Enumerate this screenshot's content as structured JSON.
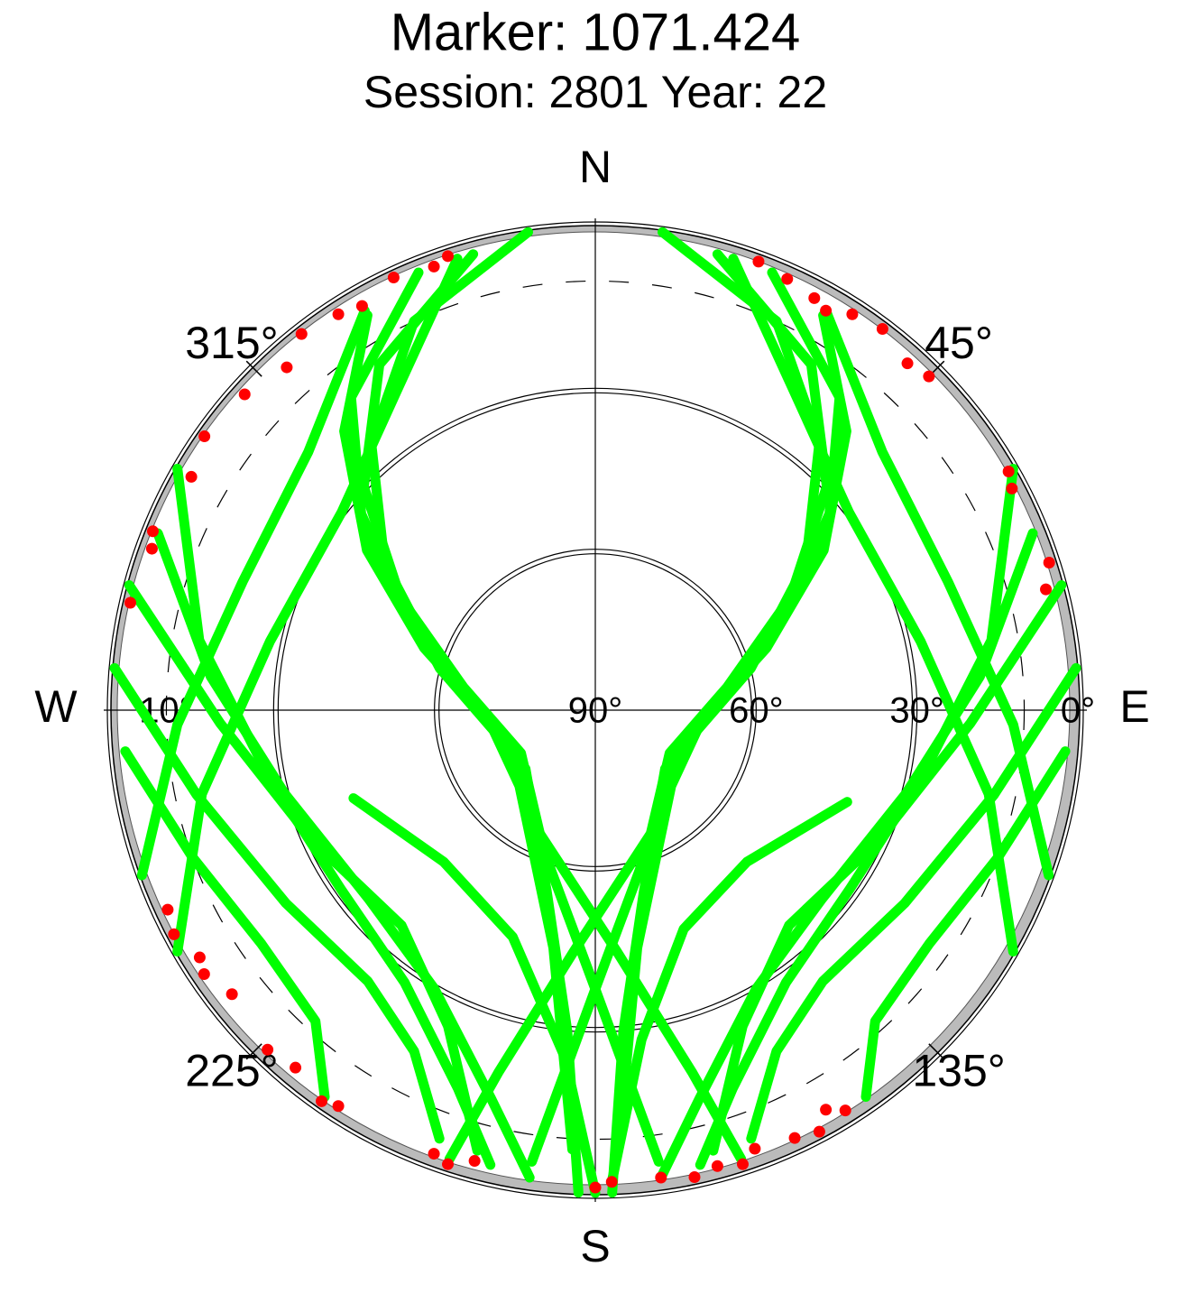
{
  "chart_data": {
    "type": "polar",
    "title": "Marker: 1071.424",
    "subtitle": "Session: 2801 Year: 22",
    "ylim": [
      90,
      0
    ],
    "yticks": [
      {
        "value": 0,
        "label": "0°"
      },
      {
        "value": 10,
        "label": "10°"
      },
      {
        "value": 30,
        "label": "30°"
      },
      {
        "value": 60,
        "label": "60°"
      },
      {
        "value": 90,
        "label": "90°"
      }
    ],
    "xticks": [
      {
        "value": 45,
        "label": "45°"
      },
      {
        "value": 135,
        "label": "135°"
      },
      {
        "value": 225,
        "label": "225°"
      },
      {
        "value": 315,
        "label": "315°"
      }
    ],
    "directions": [
      {
        "value": 0,
        "label": "N"
      },
      {
        "value": 90,
        "label": "E"
      },
      {
        "value": 180,
        "label": "S"
      },
      {
        "value": 270,
        "label": "W"
      }
    ],
    "grid": true,
    "series": [
      {
        "color": "#00ff00",
        "x": [
          352,
          335,
          320,
          305,
          285,
          250,
          205,
          175,
          165,
          162
        ],
        "values": [
          0,
          10,
          25,
          42,
          60,
          72,
          65,
          45,
          20,
          2
        ]
      },
      {
        "color": "#00ff00",
        "x": [
          345,
          328,
          314,
          300,
          280,
          240,
          200,
          180,
          172
        ],
        "values": [
          2,
          14,
          30,
          48,
          65,
          74,
          62,
          38,
          5
        ]
      },
      {
        "color": "#00ff00",
        "x": [
          338,
          322,
          310,
          295,
          272,
          230,
          195,
          185,
          182
        ],
        "values": [
          2,
          16,
          33,
          52,
          68,
          73,
          55,
          30,
          0
        ]
      },
      {
        "color": "#00ff00",
        "x": [
          330,
          318,
          305,
          290,
          265,
          225,
          190,
          183
        ],
        "values": [
          5,
          20,
          38,
          56,
          70,
          70,
          45,
          8
        ]
      },
      {
        "color": "#00ff00",
        "x": [
          8,
          25,
          40,
          55,
          75,
          110,
          155,
          185,
          195,
          198
        ],
        "values": [
          0,
          10,
          25,
          42,
          60,
          72,
          65,
          45,
          20,
          2
        ]
      },
      {
        "color": "#00ff00",
        "x": [
          15,
          32,
          46,
          60,
          80,
          120,
          160,
          180,
          188
        ],
        "values": [
          2,
          14,
          30,
          48,
          65,
          74,
          62,
          38,
          5
        ]
      },
      {
        "color": "#00ff00",
        "x": [
          22,
          38,
          50,
          65,
          88,
          130,
          165,
          175,
          178
        ],
        "values": [
          2,
          16,
          33,
          52,
          68,
          73,
          55,
          30,
          0
        ]
      },
      {
        "color": "#00ff00",
        "x": [
          30,
          42,
          55,
          70,
          95,
          135,
          170,
          177
        ],
        "values": [
          5,
          20,
          38,
          56,
          70,
          70,
          45,
          8
        ]
      },
      {
        "color": "#00ff00",
        "x": [
          292,
          275,
          255,
          230,
          210,
          195,
          188
        ],
        "values": [
          2,
          18,
          30,
          35,
          30,
          15,
          2
        ]
      },
      {
        "color": "#00ff00",
        "x": [
          285,
          268,
          245,
          222,
          205,
          195
        ],
        "values": [
          0,
          20,
          32,
          36,
          25,
          5
        ]
      },
      {
        "color": "#00ff00",
        "x": [
          300,
          280,
          258,
          235,
          215,
          200,
          193
        ],
        "values": [
          0,
          15,
          28,
          32,
          28,
          15,
          3
        ]
      },
      {
        "color": "#00ff00",
        "x": [
          275,
          258,
          238,
          220,
          208,
          200
        ],
        "values": [
          0,
          14,
          22,
          24,
          18,
          5
        ]
      },
      {
        "color": "#00ff00",
        "x": [
          265,
          250,
          235,
          222,
          215
        ],
        "values": [
          2,
          10,
          14,
          12,
          2
        ]
      },
      {
        "color": "#00ff00",
        "x": [
          68,
          85,
          105,
          130,
          150,
          165,
          172
        ],
        "values": [
          2,
          18,
          30,
          35,
          30,
          15,
          2
        ]
      },
      {
        "color": "#00ff00",
        "x": [
          75,
          92,
          115,
          138,
          155,
          165
        ],
        "values": [
          0,
          20,
          32,
          36,
          25,
          5
        ]
      },
      {
        "color": "#00ff00",
        "x": [
          60,
          80,
          102,
          125,
          145,
          160,
          167
        ],
        "values": [
          0,
          15,
          28,
          32,
          28,
          15,
          3
        ]
      },
      {
        "color": "#00ff00",
        "x": [
          85,
          102,
          122,
          140,
          152,
          160
        ],
        "values": [
          0,
          14,
          22,
          24,
          18,
          5
        ]
      },
      {
        "color": "#00ff00",
        "x": [
          95,
          110,
          125,
          138,
          145
        ],
        "values": [
          2,
          10,
          14,
          12,
          2
        ]
      },
      {
        "color": "#00ff00",
        "x": [
          240,
          258,
          282,
          308,
          328,
          343
        ],
        "values": [
          0,
          15,
          28,
          30,
          20,
          2
        ]
      },
      {
        "color": "#00ff00",
        "x": [
          250,
          268,
          290,
          312,
          330
        ],
        "values": [
          0,
          12,
          20,
          18,
          4
        ]
      },
      {
        "color": "#00ff00",
        "x": [
          120,
          102,
          78,
          52,
          32,
          17
        ],
        "values": [
          0,
          15,
          28,
          30,
          20,
          2
        ]
      },
      {
        "color": "#00ff00",
        "x": [
          110,
          92,
          70,
          48,
          30
        ],
        "values": [
          0,
          12,
          20,
          18,
          4
        ]
      },
      {
        "color": "#00ff00",
        "x": [
          180,
          185,
          200,
          225,
          250
        ],
        "values": [
          0,
          25,
          45,
          50,
          42
        ]
      },
      {
        "color": "#00ff00",
        "x": [
          178,
          172,
          158,
          135,
          110
        ],
        "values": [
          2,
          28,
          46,
          50,
          40
        ]
      },
      {
        "color": "#ff0000",
        "x": [
          342,
          340,
          335,
          330,
          327,
          322,
          318,
          312,
          305,
          300,
          292,
          290,
          283,
          245,
          242,
          238,
          236,
          232,
          224,
          220,
          215,
          213,
          200,
          198,
          195,
          180,
          178,
          20,
          24,
          28,
          30,
          33,
          37,
          42,
          45,
          60,
          62,
          72,
          75,
          148,
          150,
          152,
          155,
          160,
          162,
          165,
          168,
          172
        ],
        "values": [
          1,
          2,
          1,
          3,
          2,
          1,
          4,
          2,
          1,
          3,
          1,
          2,
          1,
          2,
          1,
          3,
          2,
          4,
          2,
          3,
          1,
          2,
          2,
          1,
          3,
          1,
          2,
          1,
          2,
          3,
          4,
          2,
          1,
          3,
          2,
          1,
          2,
          1,
          3,
          2,
          4,
          1,
          2,
          3,
          1,
          2,
          1,
          2
        ]
      }
    ]
  }
}
